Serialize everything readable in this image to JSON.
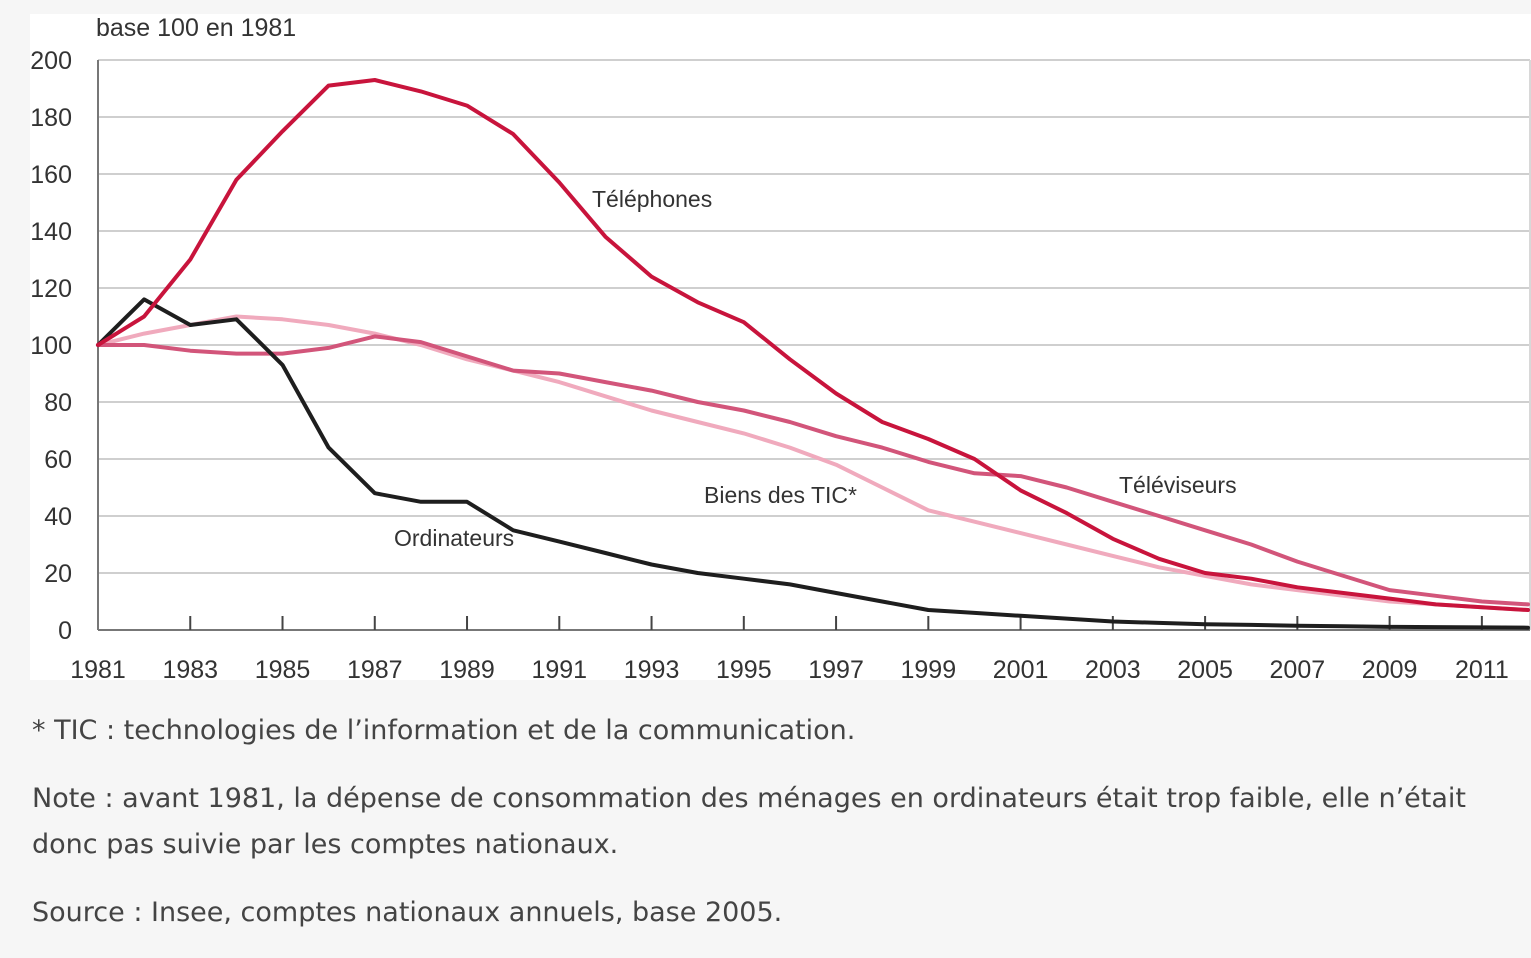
{
  "chart_data": {
    "type": "line",
    "title": "",
    "unit_label": "base 100 en 1981",
    "xlabel": "",
    "ylabel": "",
    "ylim": [
      0,
      200
    ],
    "yticks": [
      0,
      20,
      40,
      60,
      80,
      100,
      120,
      140,
      160,
      180,
      200
    ],
    "xlim": [
      1981,
      2012
    ],
    "xticks": [
      1981,
      1983,
      1985,
      1987,
      1989,
      1991,
      1993,
      1995,
      1997,
      1999,
      2001,
      2003,
      2005,
      2007,
      2009,
      2011
    ],
    "grid": true,
    "x": [
      1981,
      1982,
      1983,
      1984,
      1985,
      1986,
      1987,
      1988,
      1989,
      1990,
      1991,
      1992,
      1993,
      1994,
      1995,
      1996,
      1997,
      1998,
      1999,
      2000,
      2001,
      2002,
      2003,
      2004,
      2005,
      2006,
      2007,
      2008,
      2009,
      2010,
      2011,
      2012
    ],
    "series": [
      {
        "name": "Téléphones",
        "color": "#c8143c",
        "values": [
          100,
          110,
          130,
          158,
          175,
          191,
          193,
          189,
          184,
          174,
          157,
          138,
          124,
          115,
          108,
          95,
          83,
          73,
          67,
          60,
          49,
          41,
          32,
          25,
          20,
          18,
          15,
          13,
          11,
          9,
          8,
          7
        ]
      },
      {
        "name": "Téléviseurs",
        "color": "#d2557a",
        "values": [
          100,
          100,
          98,
          97,
          97,
          99,
          103,
          101,
          96,
          91,
          90,
          87,
          84,
          80,
          77,
          73,
          68,
          64,
          59,
          55,
          54,
          50,
          45,
          40,
          35,
          30,
          24,
          19,
          14,
          12,
          10,
          9
        ]
      },
      {
        "name": "Biens des TIC*",
        "color": "#f0aabd",
        "values": [
          100,
          104,
          107,
          110,
          109,
          107,
          104,
          100,
          95,
          91,
          87,
          82,
          77,
          73,
          69,
          64,
          58,
          50,
          42,
          38,
          34,
          30,
          26,
          22,
          19,
          16,
          14,
          12,
          10,
          9,
          8,
          7
        ]
      },
      {
        "name": "Ordinateurs",
        "color": "#1e1e1e",
        "values": [
          100,
          116,
          107,
          109,
          93,
          64,
          48,
          45,
          45,
          35,
          31,
          27,
          23,
          20,
          18,
          16,
          13,
          10,
          7,
          6,
          5,
          4,
          3,
          2.5,
          2,
          1.8,
          1.5,
          1.3,
          1.1,
          1,
          0.9,
          0.8
        ]
      }
    ],
    "annotations": [
      {
        "text": "Téléphones",
        "series": "Téléphones"
      },
      {
        "text": "Téléviseurs",
        "series": "Téléviseurs"
      },
      {
        "text": "Biens des TIC*",
        "series": "Biens des TIC*"
      },
      {
        "text": "Ordinateurs",
        "series": "Ordinateurs"
      }
    ]
  },
  "notes": {
    "footnote": "* TIC : technologies de l’information et de la communication.",
    "note": "Note : avant 1981, la dépense de consommation des ménages en ordinateurs était trop faible, elle n’était donc pas suivie par les comptes nationaux.",
    "source": "Source : Insee, comptes nationaux annuels, base 2005."
  }
}
